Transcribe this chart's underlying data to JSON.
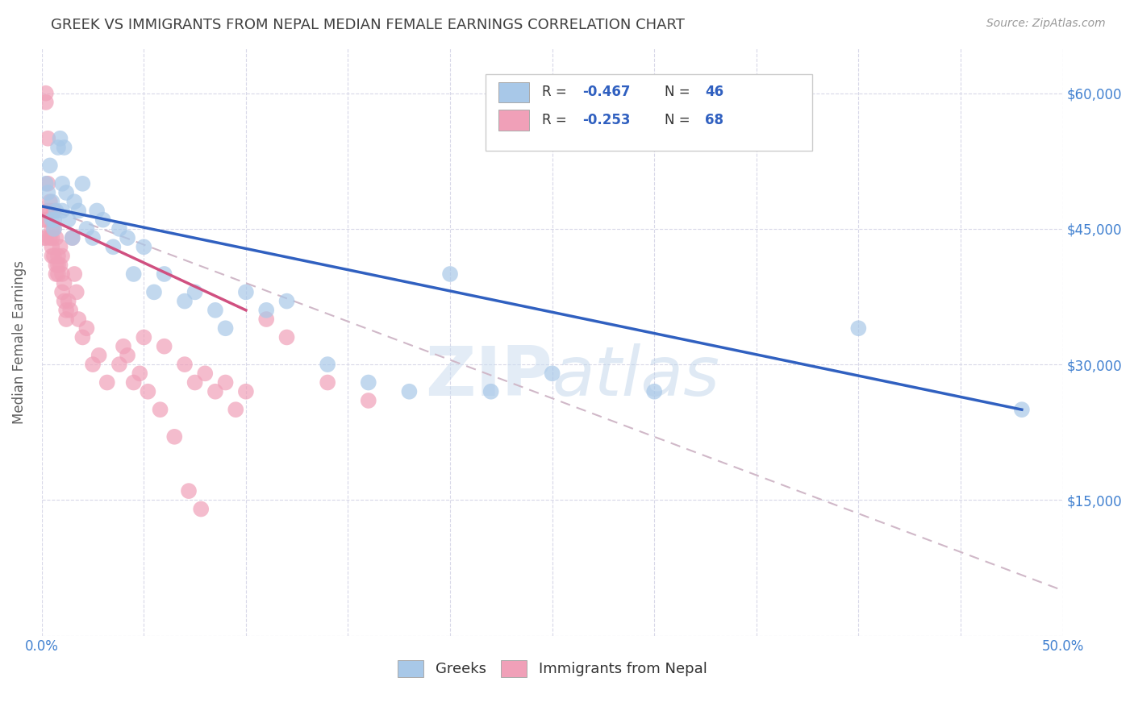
{
  "title": "GREEK VS IMMIGRANTS FROM NEPAL MEDIAN FEMALE EARNINGS CORRELATION CHART",
  "source": "Source: ZipAtlas.com",
  "ylabel": "Median Female Earnings",
  "x_min": 0.0,
  "x_max": 0.5,
  "y_min": 0,
  "y_max": 65000,
  "yticks": [
    0,
    15000,
    30000,
    45000,
    60000
  ],
  "ytick_labels": [
    "",
    "$15,000",
    "$30,000",
    "$45,000",
    "$60,000"
  ],
  "xticks": [
    0.0,
    0.05,
    0.1,
    0.15,
    0.2,
    0.25,
    0.3,
    0.35,
    0.4,
    0.45,
    0.5
  ],
  "xtick_labels": [
    "0.0%",
    "",
    "",
    "",
    "",
    "",
    "",
    "",
    "",
    "",
    "50.0%"
  ],
  "legend_labels": [
    "Greeks",
    "Immigrants from Nepal"
  ],
  "color_blue": "#a8c8e8",
  "color_pink": "#f0a0b8",
  "line_blue": "#3060c0",
  "line_pink": "#d05080",
  "line_dashed_color": "#d0b8c8",
  "watermark": "ZIPatlas",
  "title_color": "#404040",
  "tick_color": "#4080d0",
  "ylabel_color": "#606060",
  "greek_x": [
    0.002,
    0.003,
    0.004,
    0.005,
    0.005,
    0.006,
    0.006,
    0.007,
    0.008,
    0.009,
    0.01,
    0.01,
    0.011,
    0.012,
    0.013,
    0.015,
    0.016,
    0.018,
    0.02,
    0.022,
    0.025,
    0.027,
    0.03,
    0.035,
    0.038,
    0.042,
    0.045,
    0.05,
    0.055,
    0.06,
    0.07,
    0.075,
    0.085,
    0.09,
    0.1,
    0.11,
    0.12,
    0.14,
    0.16,
    0.18,
    0.2,
    0.22,
    0.25,
    0.3,
    0.4,
    0.48
  ],
  "greek_y": [
    50000,
    49000,
    52000,
    48000,
    46000,
    45000,
    46000,
    47000,
    54000,
    55000,
    50000,
    47000,
    54000,
    49000,
    46000,
    44000,
    48000,
    47000,
    50000,
    45000,
    44000,
    47000,
    46000,
    43000,
    45000,
    44000,
    40000,
    43000,
    38000,
    40000,
    37000,
    38000,
    36000,
    34000,
    38000,
    36000,
    37000,
    30000,
    28000,
    27000,
    40000,
    27000,
    29000,
    27000,
    34000,
    25000
  ],
  "nepal_x": [
    0.001,
    0.001,
    0.002,
    0.002,
    0.002,
    0.002,
    0.003,
    0.003,
    0.003,
    0.004,
    0.004,
    0.004,
    0.005,
    0.005,
    0.005,
    0.005,
    0.006,
    0.006,
    0.006,
    0.007,
    0.007,
    0.007,
    0.008,
    0.008,
    0.008,
    0.009,
    0.009,
    0.01,
    0.01,
    0.01,
    0.011,
    0.011,
    0.012,
    0.012,
    0.013,
    0.014,
    0.015,
    0.016,
    0.017,
    0.018,
    0.02,
    0.022,
    0.025,
    0.028,
    0.032,
    0.038,
    0.045,
    0.05,
    0.06,
    0.07,
    0.075,
    0.08,
    0.085,
    0.09,
    0.095,
    0.1,
    0.11,
    0.12,
    0.14,
    0.16,
    0.04,
    0.042,
    0.048,
    0.052,
    0.058,
    0.065,
    0.072,
    0.078
  ],
  "nepal_y": [
    46000,
    44000,
    60000,
    59000,
    46000,
    44000,
    55000,
    50000,
    47000,
    48000,
    47000,
    44000,
    45000,
    44000,
    43000,
    42000,
    47000,
    45000,
    42000,
    44000,
    41000,
    40000,
    42000,
    41000,
    40000,
    43000,
    41000,
    42000,
    40000,
    38000,
    39000,
    37000,
    36000,
    35000,
    37000,
    36000,
    44000,
    40000,
    38000,
    35000,
    33000,
    34000,
    30000,
    31000,
    28000,
    30000,
    28000,
    33000,
    32000,
    30000,
    28000,
    29000,
    27000,
    28000,
    25000,
    27000,
    35000,
    33000,
    28000,
    26000,
    32000,
    31000,
    29000,
    27000,
    25000,
    22000,
    16000,
    14000
  ],
  "greek_line_x": [
    0.0,
    0.48
  ],
  "greek_line_y": [
    47500,
    25000
  ],
  "nepal_line_x": [
    0.0,
    0.1
  ],
  "nepal_line_y": [
    46500,
    36000
  ],
  "dashed_line_x": [
    0.0,
    0.5
  ],
  "dashed_line_y": [
    47500,
    5000
  ]
}
